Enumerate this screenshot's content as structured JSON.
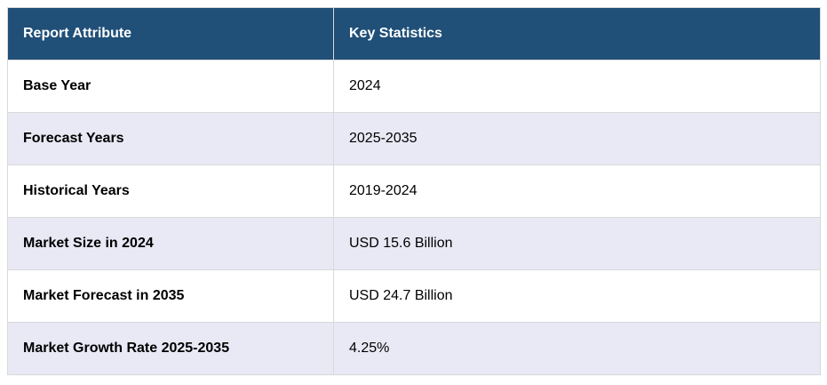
{
  "header": {
    "attribute": "Report Attribute",
    "stats": "Key Statistics"
  },
  "rows": [
    {
      "attribute": "Base Year",
      "value": "2024"
    },
    {
      "attribute": "Forecast Years",
      "value": "2025-2035"
    },
    {
      "attribute": "Historical Years",
      "value": "2019-2024"
    },
    {
      "attribute": "Market Size in 2024",
      "value": "USD 15.6 Billion"
    },
    {
      "attribute": "Market Forecast in 2035",
      "value": "USD 24.7 Billion"
    },
    {
      "attribute": "Market Growth Rate 2025-2035",
      "value": "4.25%"
    }
  ]
}
